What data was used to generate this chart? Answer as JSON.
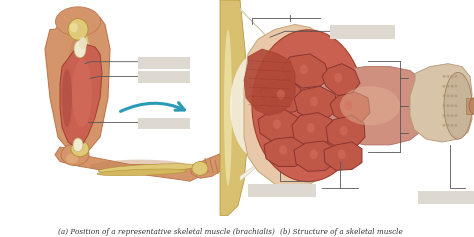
{
  "background_color": "#ffffff",
  "fig_width": 4.74,
  "fig_height": 2.37,
  "dpi": 100,
  "caption_left": "(a) Position of a representative skeletal muscle (brachialis)",
  "caption_right": "(b) Structure of a skeletal muscle",
  "caption_fontsize": 5.2,
  "caption_color": "#333333",
  "skin_color": "#d4956a",
  "skin_shadow": "#c07850",
  "bone_color": "#dfc878",
  "bone_shadow": "#c8a845",
  "muscle_color_light": "#c96050",
  "muscle_color_dark": "#a04030",
  "tendon_color": "#e8dfc0",
  "connective_color": "#f0ebe0",
  "label_box_color": "#ddd8d0",
  "label_line_color": "#555555",
  "arrow_color": "#2a9bb5",
  "fascicle_fill": "#c05848",
  "fascicle_border": "#8b3530",
  "epimysium_color": "#e8c8a8"
}
